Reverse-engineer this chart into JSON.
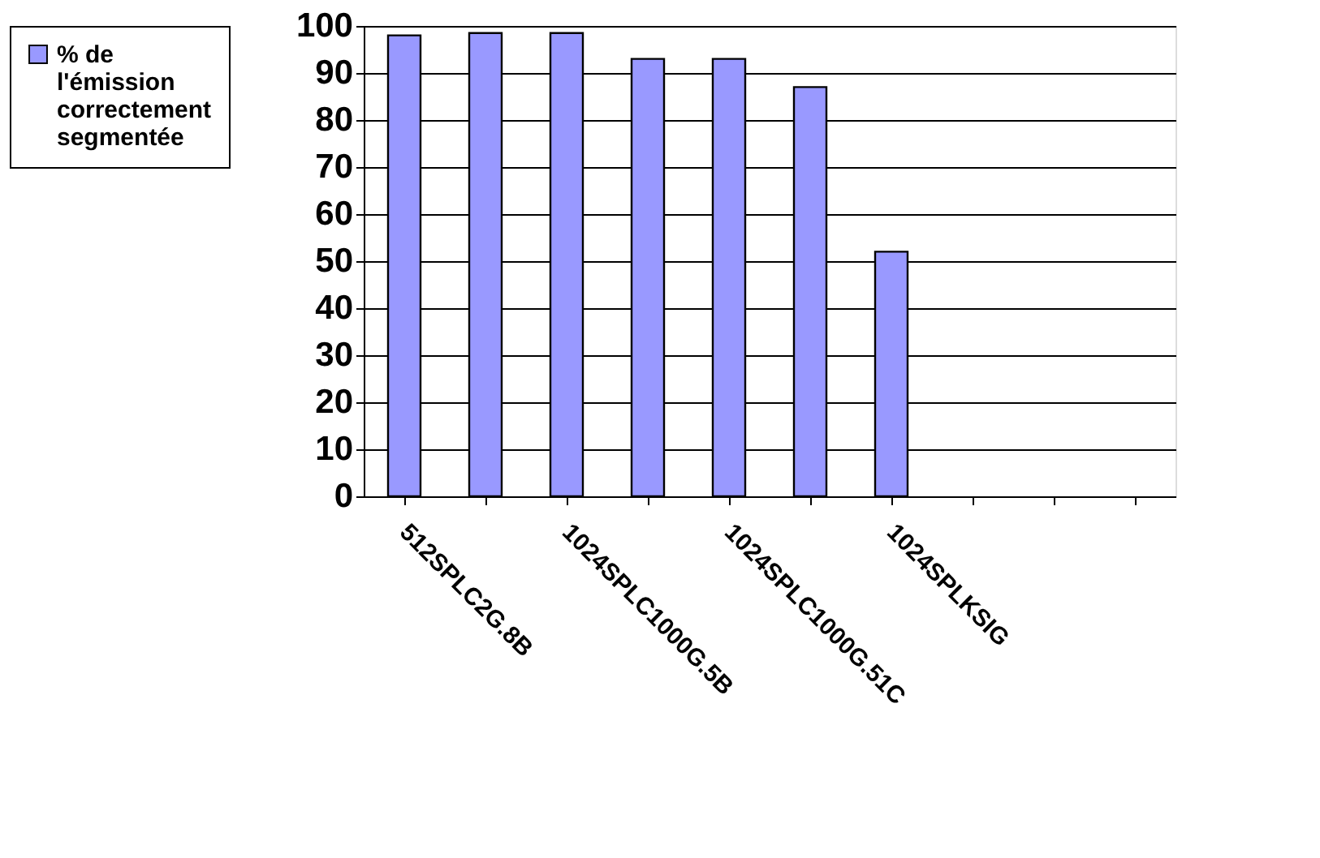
{
  "chart_data": {
    "type": "bar",
    "categories": [
      "512SPLC2G.8B",
      null,
      "1024SPLC1000G.5B",
      null,
      "1024SPLC1000G.51C",
      null,
      "1024SPLKSIG",
      null,
      null,
      null
    ],
    "series": [
      {
        "name": "% de l'émission correctement segmentée",
        "color": "#9999ff",
        "values": [
          98,
          98.5,
          98.5,
          93,
          93,
          87,
          52,
          null,
          null,
          null
        ]
      }
    ],
    "ylim": [
      0,
      100
    ],
    "yticks": [
      0,
      10,
      20,
      30,
      40,
      50,
      60,
      70,
      80,
      90,
      100
    ],
    "grid": "y",
    "legend": "left"
  }
}
